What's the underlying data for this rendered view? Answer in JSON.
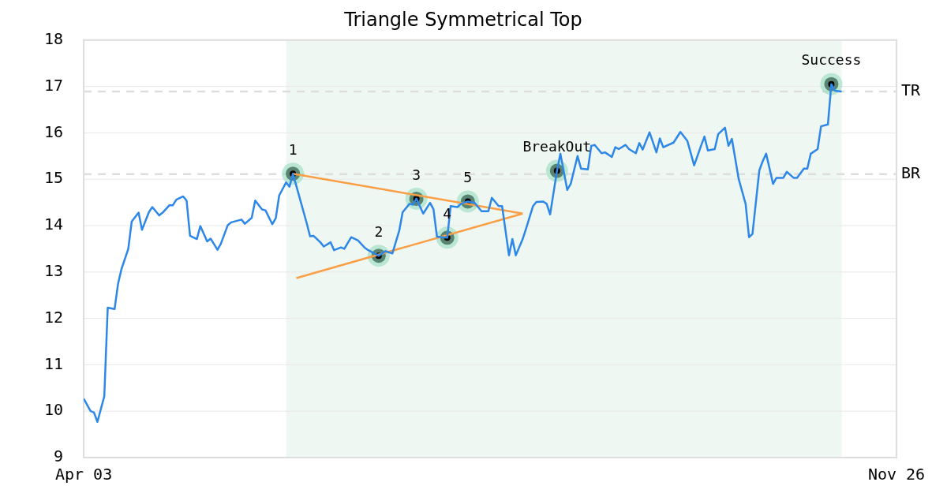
{
  "chart_data": {
    "type": "line",
    "title": "Triangle Symmetrical Top",
    "xlim": [
      "--04-03",
      "--11-26"
    ],
    "xticks": [
      {
        "value": "--04-03",
        "label": "Apr 03"
      },
      {
        "value": "--11-26",
        "label": "Nov 26"
      }
    ],
    "ylim": [
      9,
      18
    ],
    "yticks": [
      9,
      10,
      11,
      12,
      13,
      14,
      15,
      16,
      17,
      18
    ],
    "grid": "y",
    "legend": false,
    "marker": "none",
    "line_style": "solid",
    "series": [
      {
        "color": "#2d87e8",
        "x": [
          "--04-03",
          "--04-05",
          "--04-06",
          "--04-07",
          "--04-09",
          "--04-10",
          "--04-12",
          "--04-13",
          "--04-14",
          "--04-16",
          "--04-17",
          "--04-19",
          "--04-20",
          "--04-22",
          "--04-23",
          "--04-25",
          "--04-26",
          "--04-28",
          "--04-29",
          "--04-30",
          "--05-02",
          "--05-03",
          "--05-04",
          "--05-06",
          "--05-07",
          "--05-09",
          "--05-10",
          "--05-12",
          "--05-13",
          "--05-15",
          "--05-16",
          "--05-19",
          "--05-20",
          "--05-22",
          "--05-23",
          "--05-25",
          "--05-26",
          "--05-28",
          "--05-29",
          "--05-30",
          "--06-01",
          "--06-02",
          "--06-03",
          "--06-07",
          "--06-08",
          "--06-09",
          "--06-11",
          "--06-12",
          "--06-14",
          "--06-15",
          "--06-17",
          "--06-18",
          "--06-20",
          "--06-22",
          "--06-24",
          "--06-25",
          "--06-28",
          "--06-30",
          "--07-02",
          "--07-04",
          "--07-05",
          "--07-07",
          "--07-08",
          "--07-09",
          "--07-11",
          "--07-13",
          "--07-14",
          "--07-15",
          "--07-18",
          "--07-19",
          "--07-21",
          "--07-22",
          "--07-24",
          "--07-26",
          "--07-28",
          "--07-30",
          "--07-31",
          "--08-02",
          "--08-03",
          "--08-05",
          "--08-06",
          "--08-07",
          "--08-09",
          "--08-10",
          "--08-12",
          "--08-13",
          "--08-15",
          "--08-16",
          "--08-17",
          "--08-19",
          "--08-20",
          "--08-22",
          "--08-23",
          "--08-25",
          "--08-26",
          "--08-28",
          "--08-29",
          "--08-30",
          "--09-01",
          "--09-02",
          "--09-04",
          "--09-05",
          "--09-06",
          "--09-08",
          "--09-09",
          "--09-11",
          "--09-12",
          "--09-13",
          "--09-15",
          "--09-17",
          "--09-18",
          "--09-19",
          "--09-22",
          "--09-24",
          "--09-26",
          "--09-28",
          "--09-30",
          "--10-01",
          "--10-02",
          "--10-04",
          "--10-05",
          "--10-07",
          "--10-08",
          "--10-09",
          "--10-11",
          "--10-13",
          "--10-14",
          "--10-15",
          "--10-17",
          "--10-18",
          "--10-19",
          "--10-21",
          "--10-22",
          "--10-24",
          "--10-25",
          "--10-27",
          "--10-28",
          "--10-30",
          "--10-31",
          "--11-01",
          "--11-03",
          "--11-04",
          "--11-06",
          "--11-07",
          "--11-08",
          "--11-10"
        ],
        "values": [
          10.27,
          10.0,
          9.97,
          9.77,
          10.32,
          12.23,
          12.2,
          12.74,
          13.06,
          13.5,
          14.09,
          14.28,
          13.91,
          14.29,
          14.4,
          14.22,
          14.28,
          14.44,
          14.44,
          14.56,
          14.63,
          14.54,
          13.78,
          13.71,
          13.99,
          13.66,
          13.72,
          13.48,
          13.61,
          14.01,
          14.07,
          14.13,
          14.04,
          14.17,
          14.54,
          14.35,
          14.33,
          14.03,
          14.16,
          14.65,
          14.93,
          14.84,
          15.12,
          14.06,
          13.77,
          13.78,
          13.64,
          13.55,
          13.64,
          13.47,
          13.53,
          13.5,
          13.75,
          13.68,
          13.52,
          13.47,
          13.35,
          13.45,
          13.4,
          13.89,
          14.29,
          14.47,
          14.45,
          14.58,
          14.26,
          14.49,
          14.35,
          13.76,
          13.74,
          14.42,
          14.4,
          14.47,
          14.52,
          14.49,
          14.31,
          14.31,
          14.6,
          14.42,
          14.42,
          13.36,
          13.71,
          13.36,
          13.71,
          13.94,
          14.42,
          14.51,
          14.52,
          14.47,
          14.24,
          15.18,
          15.55,
          14.77,
          14.9,
          15.5,
          15.23,
          15.21,
          15.72,
          15.74,
          15.56,
          15.58,
          15.48,
          15.69,
          15.65,
          15.74,
          15.65,
          15.56,
          15.78,
          15.64,
          16.01,
          15.58,
          15.88,
          15.69,
          15.79,
          16.02,
          15.83,
          15.3,
          15.72,
          15.92,
          15.62,
          15.65,
          15.97,
          16.11,
          15.72,
          15.87,
          15.0,
          14.47,
          13.75,
          13.82,
          15.19,
          15.39,
          15.55,
          14.9,
          15.03,
          15.03,
          15.16,
          15.03,
          15.03,
          15.23,
          15.23,
          15.55,
          15.65,
          16.14,
          16.18,
          17.05,
          16.91,
          16.89
        ]
      },
      {
        "color": "#fa9f45",
        "x": [
          "--06-03",
          "--08-09"
        ],
        "values": [
          15.12,
          14.26
        ]
      },
      {
        "color": "#fa9f45",
        "x": [
          "--06-04",
          "--08-09"
        ],
        "values": [
          12.87,
          14.26
        ]
      },
      {
        "type": "scatter",
        "marker": "circle",
        "color": "#000000",
        "x": [
          "--06-03",
          "--06-28",
          "--07-09",
          "--07-18",
          "--07-24",
          "--08-19",
          "--11-07"
        ],
        "values": [
          15.12,
          13.35,
          14.58,
          13.74,
          14.52,
          15.18,
          17.05
        ]
      }
    ],
    "ref_lines": [
      {
        "axis": "y",
        "value": 16.89,
        "label": "TR",
        "color": "#dddddd",
        "line_style": "dashed"
      },
      {
        "axis": "y",
        "value": 15.11,
        "label": "BR",
        "color": "#dddddd",
        "line_style": "dashed"
      }
    ],
    "bands": [
      {
        "axis": "x",
        "from": "--06-01",
        "to": "--11-10",
        "color": "#eff7f3"
      }
    ],
    "annotations": [
      {
        "text": "1",
        "x": "--06-03",
        "y": 15.12
      },
      {
        "text": "2",
        "x": "--06-28",
        "y": 13.35
      },
      {
        "text": "3",
        "x": "--07-09",
        "y": 14.58
      },
      {
        "text": "4",
        "x": "--07-18",
        "y": 13.74
      },
      {
        "text": "5",
        "x": "--07-24",
        "y": 14.52
      },
      {
        "text": "BreakOut",
        "x": "--08-19",
        "y": 15.18
      },
      {
        "text": "Success",
        "x": "--11-07",
        "y": 17.05
      }
    ]
  }
}
